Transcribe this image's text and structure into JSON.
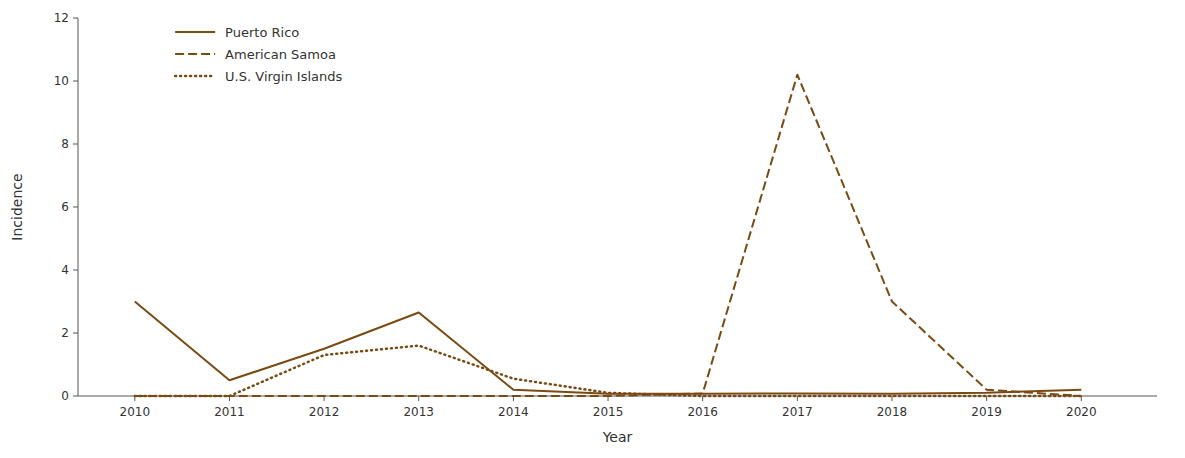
{
  "chart_data": {
    "type": "line",
    "xlabel": "Year",
    "ylabel": "Incidence",
    "x": [
      2010,
      2011,
      2012,
      2013,
      2014,
      2015,
      2016,
      2017,
      2018,
      2019,
      2020
    ],
    "series": [
      {
        "name": "Puerto Rico",
        "color": "#7B4A12",
        "line_style": "solid",
        "values": [
          3.0,
          0.5,
          1.5,
          2.65,
          0.2,
          0.07,
          0.07,
          0.08,
          0.07,
          0.1,
          0.2
        ]
      },
      {
        "name": "American Samoa",
        "color": "#7B4A12",
        "line_style": "dashed",
        "values": [
          0,
          0,
          0,
          0,
          0,
          0,
          0.08,
          10.2,
          3.0,
          0.2,
          0
        ]
      },
      {
        "name": "U.S. Virgin Islands",
        "color": "#7B4A12",
        "line_style": "dotted",
        "values": [
          0,
          0,
          1.3,
          1.6,
          0.55,
          0.1,
          0,
          0,
          0,
          0,
          0
        ]
      }
    ],
    "xlim": [
      2009.4,
      2020.8
    ],
    "ylim": [
      0,
      12
    ],
    "xticks": [
      2010,
      2011,
      2012,
      2013,
      2014,
      2015,
      2016,
      2017,
      2018,
      2019,
      2020
    ],
    "yticks": [
      0,
      2,
      4,
      6,
      8,
      10,
      12
    ],
    "grid": false,
    "legend": "upper left"
  }
}
